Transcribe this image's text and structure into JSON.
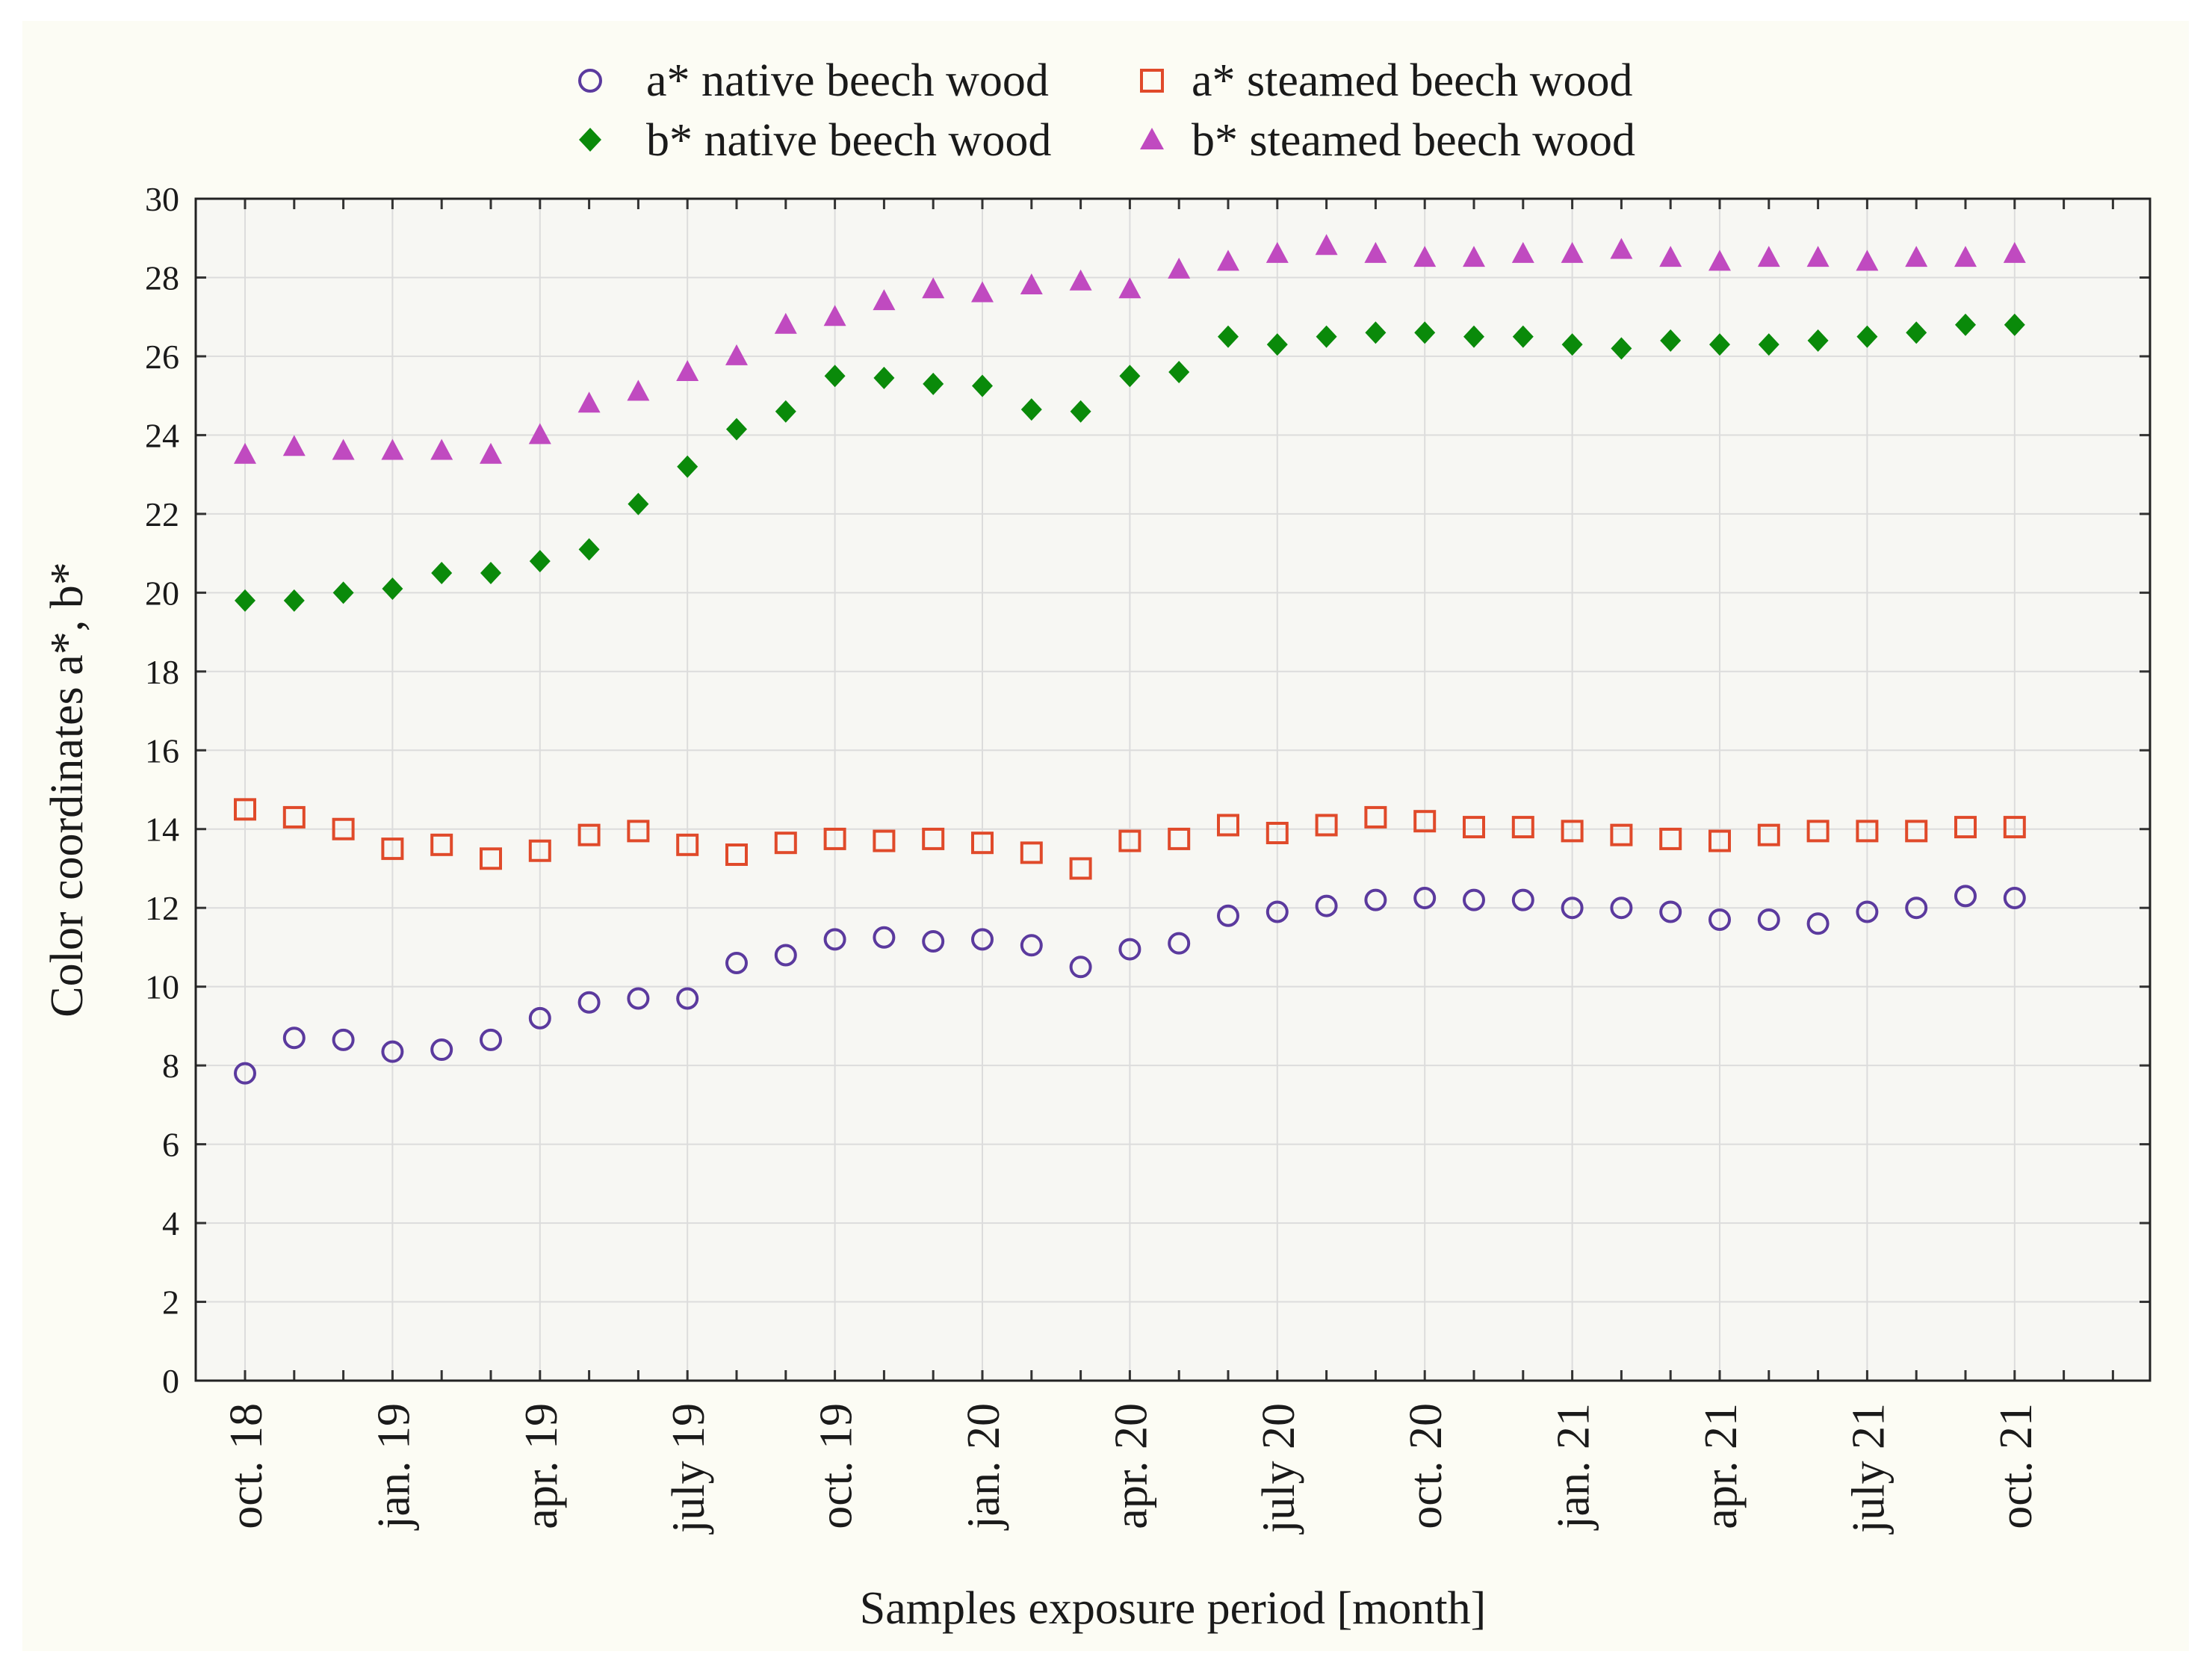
{
  "chart_data": {
    "type": "scatter",
    "title": "",
    "xlabel": "Samples exposure period [month]",
    "ylabel": "Color coordinates a*, b*",
    "ylim": [
      0,
      30
    ],
    "yticks": [
      0,
      2,
      4,
      6,
      8,
      10,
      12,
      14,
      16,
      18,
      20,
      22,
      24,
      26,
      28,
      30
    ],
    "grid": true,
    "legend_position": "top-center",
    "x_index_range": [
      0,
      39
    ],
    "x_tick_labels": [
      {
        "index": 0,
        "label": "oct. 18"
      },
      {
        "index": 3,
        "label": "jan. 19"
      },
      {
        "index": 6,
        "label": "apr. 19"
      },
      {
        "index": 9,
        "label": "july 19"
      },
      {
        "index": 12,
        "label": "oct. 19"
      },
      {
        "index": 15,
        "label": "jan. 20"
      },
      {
        "index": 18,
        "label": "apr. 20"
      },
      {
        "index": 21,
        "label": "july 20"
      },
      {
        "index": 24,
        "label": "oct. 20"
      },
      {
        "index": 27,
        "label": "jan. 21"
      },
      {
        "index": 30,
        "label": "apr. 21"
      },
      {
        "index": 33,
        "label": "july 21"
      },
      {
        "index": 36,
        "label": "oct. 21"
      }
    ],
    "series": [
      {
        "name": "a* native beech wood",
        "marker": "circle",
        "color": "#5b3a9e",
        "values": [
          7.8,
          8.7,
          8.65,
          8.35,
          8.4,
          8.65,
          9.2,
          9.6,
          9.7,
          9.7,
          10.6,
          10.8,
          11.2,
          11.25,
          11.15,
          11.2,
          11.05,
          10.5,
          10.95,
          11.1,
          11.8,
          11.9,
          12.05,
          12.2,
          12.25,
          12.2,
          12.2,
          12.0,
          12.0,
          11.9,
          11.7,
          11.7,
          11.6,
          11.9,
          12.0,
          12.3,
          12.25
        ]
      },
      {
        "name": "a* steamed beech wood",
        "marker": "square",
        "color": "#e04a2a",
        "values": [
          14.5,
          14.3,
          14.0,
          13.5,
          13.6,
          13.25,
          13.45,
          13.85,
          13.95,
          13.6,
          13.35,
          13.65,
          13.75,
          13.7,
          13.75,
          13.65,
          13.4,
          13.0,
          13.7,
          13.75,
          14.1,
          13.9,
          14.1,
          14.3,
          14.2,
          14.05,
          14.05,
          13.95,
          13.85,
          13.75,
          13.7,
          13.85,
          13.95,
          13.95,
          13.95,
          14.05,
          14.05
        ]
      },
      {
        "name": "b* native beech wood",
        "marker": "diamond",
        "color": "#0a8a0a",
        "values": [
          19.8,
          19.8,
          20.0,
          20.1,
          20.5,
          20.5,
          20.8,
          21.1,
          22.25,
          23.2,
          24.15,
          24.6,
          25.5,
          25.45,
          25.3,
          25.25,
          24.65,
          24.6,
          25.5,
          25.6,
          26.5,
          26.3,
          26.5,
          26.6,
          26.6,
          26.5,
          26.5,
          26.3,
          26.2,
          26.4,
          26.3,
          26.3,
          26.4,
          26.5,
          26.6,
          26.8,
          26.8
        ]
      },
      {
        "name": "b* steamed beech wood",
        "marker": "triangle",
        "color": "#c04ac0",
        "values": [
          23.5,
          23.7,
          23.6,
          23.6,
          23.6,
          23.5,
          24.0,
          24.8,
          25.1,
          25.6,
          26.0,
          26.8,
          27.0,
          27.4,
          27.7,
          27.6,
          27.8,
          27.9,
          27.7,
          28.2,
          28.4,
          28.6,
          28.8,
          28.6,
          28.5,
          28.5,
          28.6,
          28.6,
          28.7,
          28.5,
          28.4,
          28.5,
          28.5,
          28.4,
          28.5,
          28.5,
          28.6
        ]
      }
    ]
  }
}
